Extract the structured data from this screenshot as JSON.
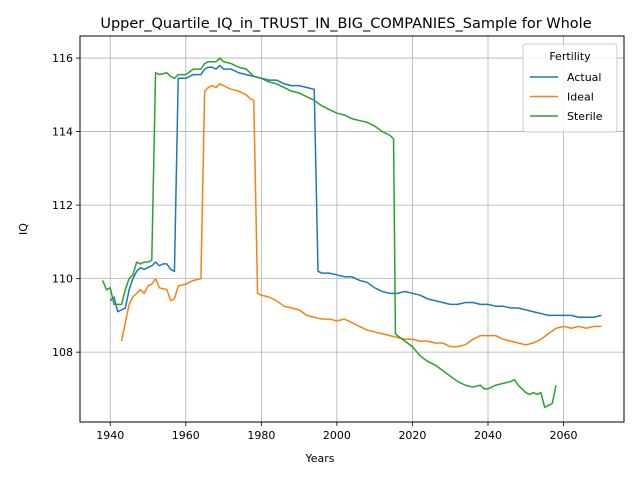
{
  "chart_data": {
    "type": "line",
    "title": "Upper_Quartile_IQ_in_TRUST_IN_BIG_COMPANIES_Sample for Whole",
    "xlabel": "Years",
    "ylabel": "IQ",
    "xlim": [
      1932,
      2076
    ],
    "ylim": [
      106.1,
      116.6
    ],
    "xticks": [
      1940,
      1960,
      1980,
      2000,
      2020,
      2040,
      2060
    ],
    "yticks": [
      108,
      110,
      112,
      114,
      116
    ],
    "grid": true,
    "legend": {
      "title": "Fertility",
      "placement": "upper-right"
    },
    "series": [
      {
        "name": "Actual",
        "color": "#1f77b4",
        "points": [
          [
            1940,
            109.4
          ],
          [
            1941,
            109.5
          ],
          [
            1942,
            109.1
          ],
          [
            1943,
            109.15
          ],
          [
            1944,
            109.2
          ],
          [
            1945,
            109.7
          ],
          [
            1946,
            110.0
          ],
          [
            1947,
            110.2
          ],
          [
            1948,
            110.3
          ],
          [
            1949,
            110.25
          ],
          [
            1950,
            110.3
          ],
          [
            1951,
            110.35
          ],
          [
            1952,
            110.45
          ],
          [
            1953,
            110.35
          ],
          [
            1954,
            110.4
          ],
          [
            1955,
            110.4
          ],
          [
            1956,
            110.25
          ],
          [
            1957,
            110.2
          ],
          [
            1958,
            115.45
          ],
          [
            1960,
            115.45
          ],
          [
            1962,
            115.55
          ],
          [
            1964,
            115.55
          ],
          [
            1965,
            115.7
          ],
          [
            1966,
            115.75
          ],
          [
            1967,
            115.75
          ],
          [
            1968,
            115.7
          ],
          [
            1969,
            115.8
          ],
          [
            1970,
            115.7
          ],
          [
            1972,
            115.7
          ],
          [
            1974,
            115.6
          ],
          [
            1976,
            115.55
          ],
          [
            1978,
            115.5
          ],
          [
            1980,
            115.45
          ],
          [
            1982,
            115.4
          ],
          [
            1984,
            115.4
          ],
          [
            1986,
            115.3
          ],
          [
            1988,
            115.25
          ],
          [
            1990,
            115.25
          ],
          [
            1992,
            115.2
          ],
          [
            1994,
            115.15
          ],
          [
            1995,
            110.2
          ],
          [
            1996,
            110.15
          ],
          [
            1998,
            110.15
          ],
          [
            2000,
            110.1
          ],
          [
            2002,
            110.05
          ],
          [
            2004,
            110.05
          ],
          [
            2006,
            109.95
          ],
          [
            2008,
            109.9
          ],
          [
            2010,
            109.75
          ],
          [
            2012,
            109.65
          ],
          [
            2014,
            109.6
          ],
          [
            2016,
            109.6
          ],
          [
            2018,
            109.65
          ],
          [
            2020,
            109.6
          ],
          [
            2022,
            109.55
          ],
          [
            2024,
            109.45
          ],
          [
            2026,
            109.4
          ],
          [
            2028,
            109.35
          ],
          [
            2030,
            109.3
          ],
          [
            2032,
            109.3
          ],
          [
            2034,
            109.35
          ],
          [
            2036,
            109.35
          ],
          [
            2038,
            109.3
          ],
          [
            2040,
            109.3
          ],
          [
            2042,
            109.25
          ],
          [
            2044,
            109.25
          ],
          [
            2046,
            109.2
          ],
          [
            2048,
            109.2
          ],
          [
            2050,
            109.15
          ],
          [
            2052,
            109.1
          ],
          [
            2054,
            109.05
          ],
          [
            2056,
            109.0
          ],
          [
            2058,
            109.0
          ],
          [
            2060,
            109.0
          ],
          [
            2062,
            109.0
          ],
          [
            2064,
            108.95
          ],
          [
            2066,
            108.95
          ],
          [
            2068,
            108.95
          ],
          [
            2070,
            109.0
          ]
        ]
      },
      {
        "name": "Ideal",
        "color": "#ff7f0e",
        "points": [
          [
            1943,
            108.3
          ],
          [
            1944,
            108.8
          ],
          [
            1945,
            109.3
          ],
          [
            1946,
            109.5
          ],
          [
            1948,
            109.7
          ],
          [
            1949,
            109.6
          ],
          [
            1950,
            109.8
          ],
          [
            1951,
            109.85
          ],
          [
            1952,
            110.0
          ],
          [
            1953,
            109.75
          ],
          [
            1955,
            109.7
          ],
          [
            1956,
            109.4
          ],
          [
            1957,
            109.45
          ],
          [
            1958,
            109.8
          ],
          [
            1960,
            109.85
          ],
          [
            1962,
            109.95
          ],
          [
            1964,
            110.0
          ],
          [
            1965,
            115.1
          ],
          [
            1966,
            115.2
          ],
          [
            1967,
            115.25
          ],
          [
            1968,
            115.2
          ],
          [
            1969,
            115.3
          ],
          [
            1970,
            115.25
          ],
          [
            1972,
            115.15
          ],
          [
            1974,
            115.1
          ],
          [
            1976,
            115.0
          ],
          [
            1977,
            114.9
          ],
          [
            1978,
            114.85
          ],
          [
            1979,
            109.6
          ],
          [
            1980,
            109.55
          ],
          [
            1982,
            109.5
          ],
          [
            1984,
            109.4
          ],
          [
            1986,
            109.25
          ],
          [
            1988,
            109.2
          ],
          [
            1990,
            109.15
          ],
          [
            1992,
            109.0
          ],
          [
            1994,
            108.95
          ],
          [
            1996,
            108.9
          ],
          [
            1998,
            108.9
          ],
          [
            2000,
            108.85
          ],
          [
            2002,
            108.9
          ],
          [
            2004,
            108.8
          ],
          [
            2006,
            108.7
          ],
          [
            2008,
            108.6
          ],
          [
            2010,
            108.55
          ],
          [
            2012,
            108.5
          ],
          [
            2014,
            108.45
          ],
          [
            2016,
            108.4
          ],
          [
            2018,
            108.35
          ],
          [
            2020,
            108.35
          ],
          [
            2022,
            108.3
          ],
          [
            2024,
            108.3
          ],
          [
            2026,
            108.25
          ],
          [
            2028,
            108.25
          ],
          [
            2030,
            108.15
          ],
          [
            2032,
            108.15
          ],
          [
            2034,
            108.2
          ],
          [
            2036,
            108.35
          ],
          [
            2038,
            108.45
          ],
          [
            2040,
            108.45
          ],
          [
            2042,
            108.45
          ],
          [
            2044,
            108.35
          ],
          [
            2046,
            108.3
          ],
          [
            2048,
            108.25
          ],
          [
            2050,
            108.2
          ],
          [
            2052,
            108.25
          ],
          [
            2054,
            108.35
          ],
          [
            2056,
            108.5
          ],
          [
            2058,
            108.65
          ],
          [
            2060,
            108.7
          ],
          [
            2062,
            108.65
          ],
          [
            2064,
            108.7
          ],
          [
            2066,
            108.65
          ],
          [
            2068,
            108.7
          ],
          [
            2070,
            108.7
          ]
        ]
      },
      {
        "name": "Sterile",
        "color": "#2ca02c",
        "points": [
          [
            1938,
            109.95
          ],
          [
            1939,
            109.7
          ],
          [
            1940,
            109.75
          ],
          [
            1941,
            109.3
          ],
          [
            1943,
            109.3
          ],
          [
            1944,
            109.7
          ],
          [
            1945,
            110.0
          ],
          [
            1946,
            110.1
          ],
          [
            1947,
            110.45
          ],
          [
            1948,
            110.4
          ],
          [
            1949,
            110.45
          ],
          [
            1950,
            110.45
          ],
          [
            1951,
            110.5
          ],
          [
            1952,
            115.6
          ],
          [
            1953,
            115.55
          ],
          [
            1955,
            115.6
          ],
          [
            1956,
            115.5
          ],
          [
            1957,
            115.45
          ],
          [
            1958,
            115.55
          ],
          [
            1960,
            115.55
          ],
          [
            1962,
            115.7
          ],
          [
            1964,
            115.7
          ],
          [
            1965,
            115.85
          ],
          [
            1966,
            115.9
          ],
          [
            1968,
            115.9
          ],
          [
            1969,
            116.0
          ],
          [
            1970,
            115.9
          ],
          [
            1972,
            115.85
          ],
          [
            1974,
            115.75
          ],
          [
            1976,
            115.7
          ],
          [
            1978,
            115.5
          ],
          [
            1980,
            115.45
          ],
          [
            1982,
            115.35
          ],
          [
            1984,
            115.3
          ],
          [
            1986,
            115.2
          ],
          [
            1988,
            115.1
          ],
          [
            1990,
            115.05
          ],
          [
            1992,
            114.95
          ],
          [
            1994,
            114.85
          ],
          [
            1996,
            114.7
          ],
          [
            1998,
            114.6
          ],
          [
            2000,
            114.5
          ],
          [
            2002,
            114.45
          ],
          [
            2004,
            114.35
          ],
          [
            2006,
            114.3
          ],
          [
            2008,
            114.25
          ],
          [
            2010,
            114.15
          ],
          [
            2012,
            114.0
          ],
          [
            2014,
            113.9
          ],
          [
            2015,
            113.8
          ],
          [
            2015.5,
            108.5
          ],
          [
            2016,
            108.45
          ],
          [
            2018,
            108.3
          ],
          [
            2020,
            108.15
          ],
          [
            2022,
            107.9
          ],
          [
            2024,
            107.75
          ],
          [
            2026,
            107.65
          ],
          [
            2028,
            107.5
          ],
          [
            2030,
            107.35
          ],
          [
            2032,
            107.2
          ],
          [
            2034,
            107.1
          ],
          [
            2036,
            107.05
          ],
          [
            2038,
            107.1
          ],
          [
            2039,
            107.0
          ],
          [
            2040,
            107.0
          ],
          [
            2042,
            107.1
          ],
          [
            2044,
            107.15
          ],
          [
            2046,
            107.2
          ],
          [
            2047,
            107.25
          ],
          [
            2048,
            107.1
          ],
          [
            2050,
            106.9
          ],
          [
            2051,
            106.85
          ],
          [
            2052,
            106.9
          ],
          [
            2053,
            106.85
          ],
          [
            2054,
            106.9
          ],
          [
            2055,
            106.5
          ],
          [
            2056,
            106.55
          ],
          [
            2057,
            106.6
          ],
          [
            2058,
            107.1
          ]
        ]
      }
    ]
  }
}
